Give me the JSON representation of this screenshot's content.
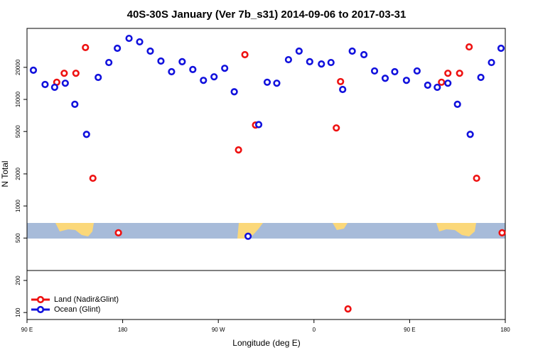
{
  "chart_data": {
    "type": "scatter",
    "title": "40S-30S January (Ver 7b_s31)   2014-09-06 to 2017-03-31",
    "x_label": "Longitude (deg E)",
    "y_label": "N Total",
    "log_y": true,
    "legend": "lower left",
    "xlim": [
      90,
      540
    ],
    "xticks": [
      {
        "value": 90,
        "label": "90 E"
      },
      180,
      {
        "value": 270,
        "label": "90 W"
      },
      {
        "value": 360,
        "label": "0"
      },
      {
        "value": 450,
        "label": "90 E"
      },
      {
        "value": 540,
        "label": "180"
      }
    ],
    "ylim": [
      86,
      46400
    ],
    "yticks": [
      100,
      200,
      500,
      1000,
      2000,
      5000,
      10000,
      20000
    ],
    "series": [
      {
        "name": "Land (Nadir&Glint)",
        "color": "#ee1111",
        "x": [
          118,
          125,
          136,
          145,
          152,
          176,
          289,
          295,
          305,
          381,
          385,
          392,
          480,
          486,
          497,
          506,
          513,
          537
        ],
        "values": [
          14500,
          17600,
          17600,
          30700,
          1820,
          560,
          3360,
          26300,
          5750,
          5400,
          14700,
          108,
          14500,
          17600,
          17600,
          31100,
          1820,
          560
        ]
      },
      {
        "name": "Ocean (Glint)",
        "color": "#1111dd",
        "x": [
          96,
          107,
          116,
          126,
          135,
          146,
          157,
          167,
          175,
          186,
          196,
          206,
          216,
          226,
          236,
          246,
          256,
          266,
          276,
          285,
          298,
          308,
          316,
          325,
          336,
          346,
          356,
          367,
          376,
          387,
          396,
          407,
          417,
          427,
          436,
          447,
          457,
          467,
          476,
          486,
          495,
          507,
          517,
          527,
          536
        ],
        "values": [
          18800,
          13800,
          13000,
          14200,
          9000,
          4700,
          16100,
          22200,
          30200,
          37400,
          34700,
          28400,
          22900,
          18200,
          22600,
          19100,
          15100,
          16300,
          19600,
          11800,
          520,
          5800,
          14500,
          14200,
          23600,
          28400,
          22600,
          21500,
          22200,
          12400,
          28400,
          26300,
          18500,
          15800,
          18200,
          15100,
          18500,
          13600,
          13000,
          14200,
          9000,
          4700,
          16100,
          22200,
          30200
        ]
      }
    ]
  }
}
